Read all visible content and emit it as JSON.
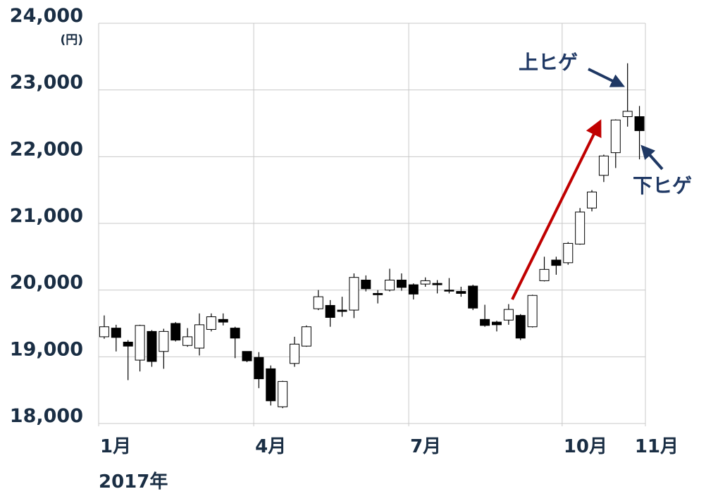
{
  "chart_data": {
    "type": "candlestick",
    "y_unit": "(円)",
    "year_label": "2017年",
    "annotations": [
      "上ヒゲ",
      "下ヒゲ"
    ],
    "categories": [
      null,
      null,
      null,
      null,
      null,
      null,
      null,
      null,
      null,
      null,
      null,
      null,
      null,
      null,
      null,
      null,
      null,
      null,
      null,
      null,
      null,
      null,
      null,
      null,
      null,
      null,
      null,
      null,
      null,
      null,
      null,
      null,
      null,
      null,
      null,
      null,
      null,
      null,
      null,
      null,
      null,
      null,
      null,
      null,
      null,
      null
    ],
    "open": [
      19300,
      19430,
      19220,
      18950,
      19380,
      19080,
      19500,
      19170,
      19130,
      19410,
      19560,
      19430,
      19080,
      18990,
      18820,
      18250,
      18900,
      19160,
      19720,
      19770,
      19700,
      19700,
      20150,
      19950,
      20000,
      20150,
      20080,
      20090,
      20100,
      20000,
      19980,
      20060,
      19560,
      19520,
      19550,
      19620,
      19450,
      20140,
      20450,
      20410,
      20690,
      21230,
      21720,
      22060,
      22600,
      22600
    ],
    "high": [
      19620,
      19480,
      19250,
      19480,
      19400,
      19420,
      19520,
      19430,
      19650,
      19650,
      19650,
      19450,
      19080,
      19070,
      18870,
      18640,
      19300,
      19470,
      20000,
      19850,
      19900,
      20250,
      20220,
      20000,
      20320,
      20250,
      20100,
      20190,
      20150,
      20180,
      20050,
      20080,
      19780,
      19540,
      19790,
      19640,
      19930,
      20500,
      20500,
      20720,
      21230,
      21500,
      22030,
      22560,
      23400,
      22760
    ],
    "low": [
      19270,
      19080,
      18650,
      18780,
      18850,
      18820,
      19230,
      19150,
      19020,
      19380,
      19470,
      18980,
      18920,
      18530,
      18270,
      18230,
      18850,
      19150,
      19700,
      19450,
      19600,
      19580,
      19980,
      19800,
      19980,
      19990,
      19860,
      20050,
      19950,
      19950,
      19900,
      19700,
      19450,
      19380,
      19480,
      19250,
      19440,
      20130,
      20230,
      20380,
      20680,
      21180,
      21620,
      21830,
      22450,
      21960
    ],
    "close": [
      19450,
      19290,
      19160,
      19470,
      18930,
      19380,
      19250,
      19300,
      19480,
      19600,
      19520,
      19280,
      18940,
      18670,
      18340,
      18630,
      19190,
      19450,
      19900,
      19590,
      19680,
      20190,
      20020,
      19930,
      20150,
      20040,
      19940,
      20140,
      20080,
      19990,
      19950,
      19730,
      19470,
      19480,
      19710,
      19280,
      19920,
      20310,
      20370,
      20700,
      21170,
      21470,
      22010,
      22550,
      22680,
      22390
    ],
    "up_color": "#ffffff",
    "down_color": "#000000",
    "xlim": [
      -0.47,
      45.5
    ],
    "xticks": [
      {
        "value": -0.47,
        "label": "1月"
      },
      {
        "value": 12.57,
        "label": "4月"
      },
      {
        "value": 25.6,
        "label": "7月"
      },
      {
        "value": 38.5,
        "label": "10月"
      },
      {
        "value": 45.5,
        "label": "11月"
      }
    ],
    "ylim": [
      18000,
      24000
    ],
    "yticks": [
      {
        "value": 18000,
        "label": "18,000"
      },
      {
        "value": 19000,
        "label": "19,000"
      },
      {
        "value": 20000,
        "label": "20,000"
      },
      {
        "value": 21000,
        "label": "21,000"
      },
      {
        "value": 22000,
        "label": "22,000"
      },
      {
        "value": 23000,
        "label": "23,000"
      },
      {
        "value": 24000,
        "label": "24,000"
      }
    ],
    "grid": true
  }
}
